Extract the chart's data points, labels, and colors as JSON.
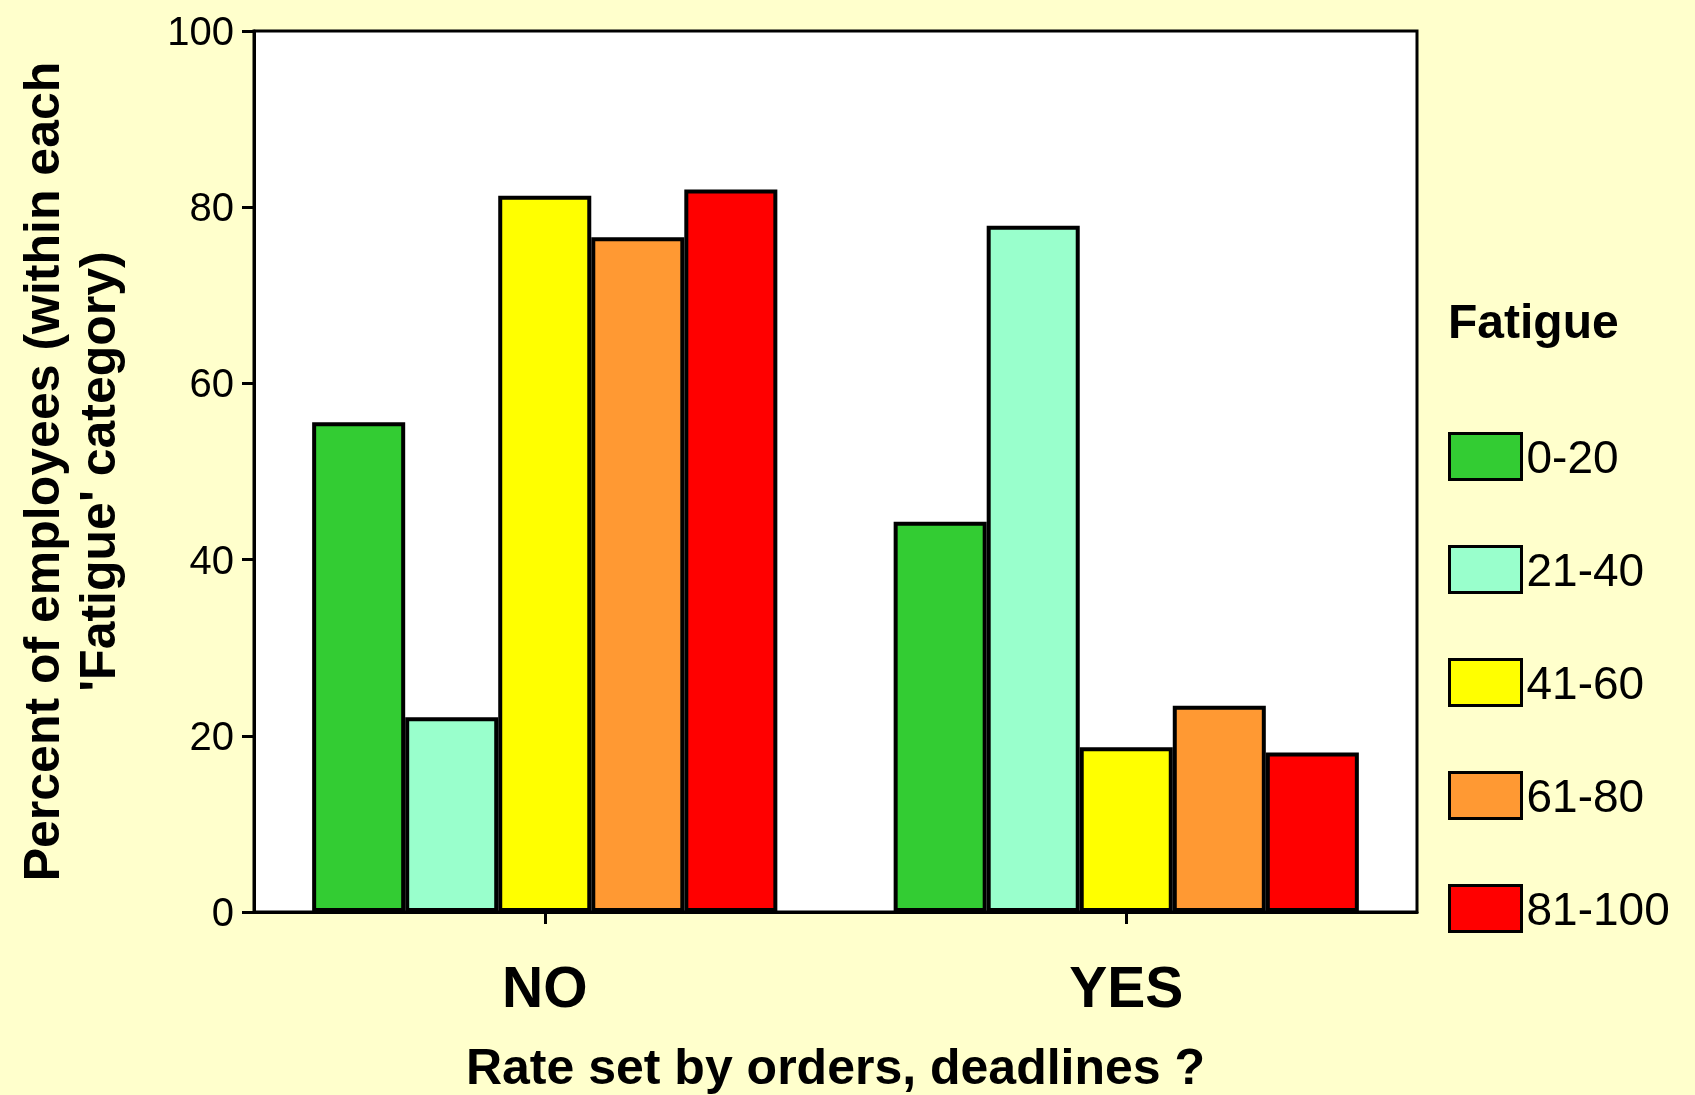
{
  "chart_data": {
    "type": "bar",
    "xlabel": "Rate set by orders, deadlines ?",
    "ylabel": "Percent of employees (within each 'Fatigue' category)",
    "legend_title": "Fatigue",
    "legend": "right",
    "categories": [
      "NO",
      "YES"
    ],
    "series": [
      {
        "name": "0-20",
        "color": "#33cc33",
        "values": [
          55.6,
          44.3
        ]
      },
      {
        "name": "21-40",
        "color": "#99ffcc",
        "values": [
          22.1,
          77.9
        ]
      },
      {
        "name": "41-60",
        "color": "#ffff00",
        "values": [
          81.3,
          18.7
        ]
      },
      {
        "name": "61-80",
        "color": "#ff9933",
        "values": [
          76.6,
          23.4
        ]
      },
      {
        "name": "81-100",
        "color": "#ff0000",
        "values": [
          82.0,
          18.1
        ]
      }
    ],
    "ylim": [
      0,
      100
    ],
    "yticks": [
      0,
      20,
      40,
      60,
      80,
      100
    ]
  }
}
